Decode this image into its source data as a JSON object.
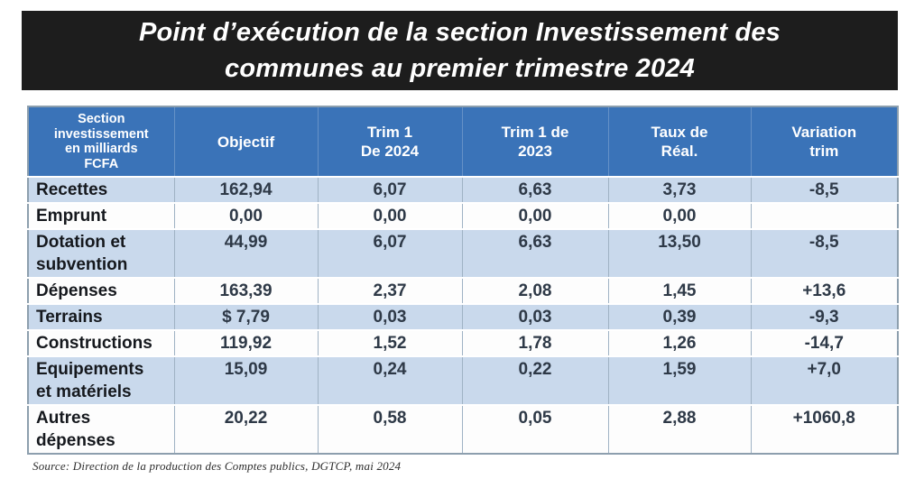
{
  "title": {
    "line1": "Point d’exécution de la section Investissement des",
    "line2": "communes au premier trimestre 2024"
  },
  "table": {
    "headers": [
      {
        "key": "section",
        "label": "Section\ninvestissement\nen milliards\nFCFA"
      },
      {
        "key": "objectif",
        "label": "Objectif"
      },
      {
        "key": "trim1-2024",
        "label": "Trim 1\nDe 2024"
      },
      {
        "key": "trim1-2023",
        "label": "Trim 1 de\n2023"
      },
      {
        "key": "taux-real",
        "label": "Taux de\nRéal."
      },
      {
        "key": "variation-trim",
        "label": "Variation\ntrim"
      }
    ],
    "rows": [
      {
        "label": "Recettes",
        "values": [
          "162,94",
          "6,07",
          "6,63",
          "3,73",
          "-8,5"
        ]
      },
      {
        "label": "Emprunt",
        "values": [
          "0,00",
          "0,00",
          "0,00",
          "0,00",
          ""
        ]
      },
      {
        "label": "Dotation et\nsubvention",
        "values": [
          "44,99",
          "6,07",
          "6,63",
          "13,50",
          "-8,5"
        ]
      },
      {
        "label": "Dépenses",
        "values": [
          "163,39",
          "2,37",
          "2,08",
          "1,45",
          "+13,6"
        ]
      },
      {
        "label": "Terrains",
        "values": [
          "$ 7,79",
          "0,03",
          "0,03",
          "0,39",
          "-9,3"
        ]
      },
      {
        "label": "Constructions",
        "values": [
          "119,92",
          "1,52",
          "1,78",
          "1,26",
          "-14,7"
        ]
      },
      {
        "label": "Equipements\net matériels",
        "values": [
          "15,09",
          "0,24",
          "0,22",
          "1,59",
          "+7,0"
        ]
      },
      {
        "label": "Autres\ndépenses",
        "values": [
          "20,22",
          "0,58",
          "0,05",
          "2,88",
          "+1060,8"
        ]
      }
    ]
  },
  "source": "Source: Direction de la production des Comptes publics, DGTCP, mai 2024",
  "colors": {
    "banner_bg": "#1d1d1d",
    "header_bg": "#3a73b8",
    "row_shaded_bg": "#c9d9ec",
    "row_plain_bg": "#fdfdfd"
  }
}
